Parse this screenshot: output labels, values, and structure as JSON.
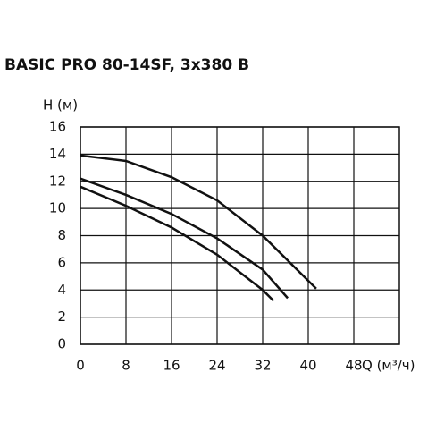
{
  "chart_data": {
    "type": "line",
    "title": "BASIC PRO 80-14SF, 3x380 B",
    "y_label": "H (м)",
    "x_label": "Q (м³/ч)",
    "xlim": [
      0,
      56
    ],
    "ylim": [
      0,
      16
    ],
    "xticks": [
      0,
      8,
      16,
      24,
      32,
      40,
      48
    ],
    "yticks": [
      0,
      2,
      4,
      6,
      8,
      10,
      12,
      14,
      16
    ],
    "grid": true,
    "series": [
      {
        "color": "#111111",
        "x": [
          0,
          8,
          16,
          24,
          32,
          41.4
        ],
        "values": [
          13.9,
          13.5,
          12.3,
          10.6,
          8.0,
          4.1
        ]
      },
      {
        "color": "#111111",
        "x": [
          0,
          8,
          16,
          24,
          32,
          36.4
        ],
        "values": [
          12.2,
          11.0,
          9.6,
          7.8,
          5.5,
          3.4
        ]
      },
      {
        "color": "#111111",
        "x": [
          0,
          8,
          16,
          24,
          32,
          33.9
        ],
        "values": [
          11.6,
          10.2,
          8.6,
          6.6,
          4.0,
          3.2
        ]
      }
    ]
  }
}
